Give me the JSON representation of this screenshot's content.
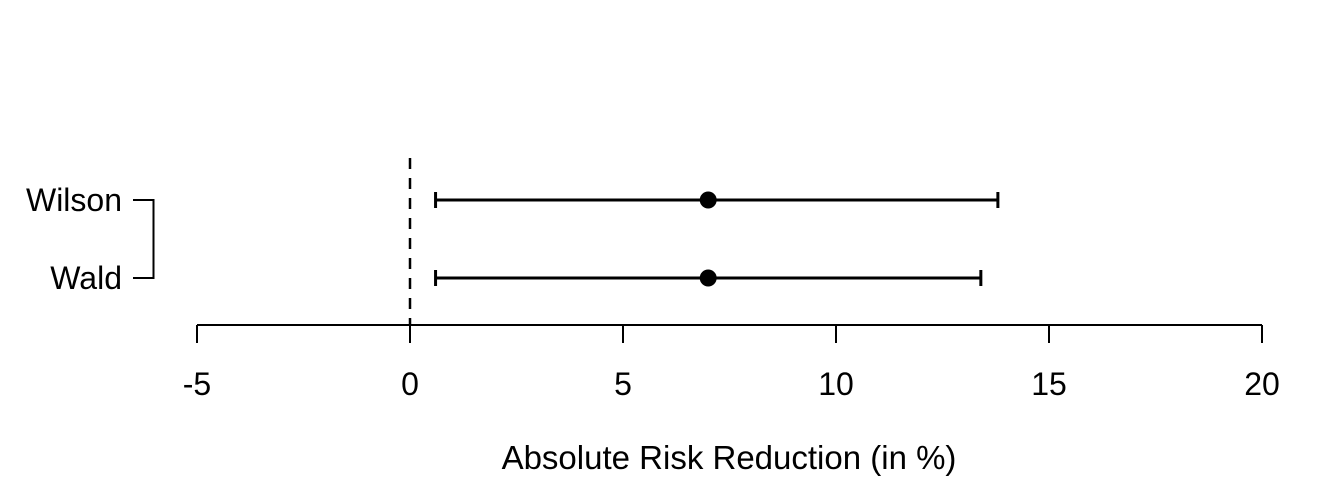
{
  "chart_data": {
    "type": "forest",
    "title": "",
    "xlabel": "Absolute Risk Reduction (in %)",
    "categories": [
      "Wilson",
      "Wald"
    ],
    "series": [
      {
        "name": "Wilson",
        "estimate": 7.0,
        "ci_lower": 0.6,
        "ci_upper": 13.8
      },
      {
        "name": "Wald",
        "estimate": 7.0,
        "ci_lower": 0.6,
        "ci_upper": 13.4
      }
    ],
    "x_ticks": [
      -5,
      0,
      5,
      10,
      15,
      20
    ],
    "xlim": [
      -5,
      20
    ],
    "reference_line": 0,
    "reference_line_style": "dashed",
    "grid": false,
    "legend": "none",
    "colors": {
      "foreground": "#000000",
      "background": "#ffffff"
    }
  }
}
